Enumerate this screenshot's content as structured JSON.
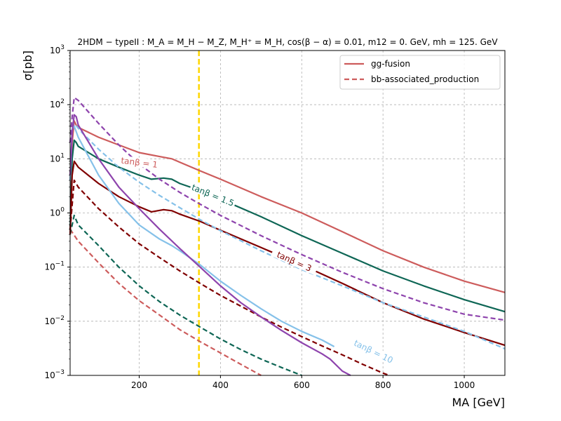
{
  "chart_data": {
    "type": "line",
    "title": "2HDM − typeII : M_A = M_H − M_Z, M_H⁺ = M_H, cos(β − α) = 0.01, m12 = 0. GeV, mh = 125. GeV",
    "xlabel": "MA [GeV]",
    "ylabel": "σ[pb]",
    "xlim": [
      30,
      1100
    ],
    "ylim": [
      0.001,
      1000
    ],
    "yscale": "log",
    "grid": true,
    "legend_position": "top-right",
    "xticks": [
      200,
      400,
      600,
      800,
      1000
    ],
    "yticks": [
      {
        "value": 0.001,
        "base": "10",
        "exp": "−3"
      },
      {
        "value": 0.01,
        "base": "10",
        "exp": "−2"
      },
      {
        "value": 0.1,
        "base": "10",
        "exp": "−1"
      },
      {
        "value": 1,
        "base": "10",
        "exp": "0"
      },
      {
        "value": 10,
        "base": "10",
        "exp": "1"
      },
      {
        "value": 100,
        "base": "10",
        "exp": "2"
      },
      {
        "value": 1000,
        "base": "10",
        "exp": "3"
      }
    ],
    "legend": [
      {
        "label": "gg-fusion",
        "style": "solid",
        "color": "#cd5c5c"
      },
      {
        "label": "bb-associated_production",
        "style": "dashed",
        "color": "#cd5c5c"
      }
    ],
    "vline": {
      "x": 347,
      "color": "#ffd700"
    },
    "series": [
      {
        "tanb": "1",
        "process": "gg-fusion",
        "color": "#cd5c5c",
        "style": "solid",
        "points": [
          [
            30,
            0.4
          ],
          [
            35,
            20
          ],
          [
            40,
            50
          ],
          [
            45,
            42
          ],
          [
            50,
            38
          ],
          [
            100,
            25
          ],
          [
            150,
            18
          ],
          [
            200,
            13
          ],
          [
            250,
            11
          ],
          [
            280,
            10
          ],
          [
            350,
            6
          ],
          [
            400,
            4.2
          ],
          [
            500,
            2
          ],
          [
            600,
            1
          ],
          [
            700,
            0.45
          ],
          [
            800,
            0.2
          ],
          [
            900,
            0.1
          ],
          [
            1000,
            0.055
          ],
          [
            1100,
            0.034
          ]
        ]
      },
      {
        "tanb": "1",
        "process": "bb-associated_production",
        "color": "#cd5c5c",
        "style": "dashed",
        "points": [
          [
            30,
            0.5
          ],
          [
            50,
            0.3
          ],
          [
            100,
            0.12
          ],
          [
            150,
            0.05
          ],
          [
            200,
            0.024
          ],
          [
            250,
            0.013
          ],
          [
            300,
            0.007
          ],
          [
            350,
            0.0042
          ],
          [
            400,
            0.0026
          ],
          [
            450,
            0.0016
          ],
          [
            500,
            0.001
          ]
        ]
      },
      {
        "tanb": "1.5",
        "process": "gg-fusion",
        "color": "#0e6655",
        "style": "solid",
        "points": [
          [
            30,
            0.5
          ],
          [
            35,
            10
          ],
          [
            40,
            22
          ],
          [
            45,
            20
          ],
          [
            50,
            17
          ],
          [
            100,
            10
          ],
          [
            150,
            7
          ],
          [
            200,
            5
          ],
          [
            230,
            4.2
          ],
          [
            260,
            4.4
          ],
          [
            280,
            4.2
          ],
          [
            300,
            3.5
          ],
          [
            350,
            2.6
          ],
          [
            400,
            1.8
          ],
          [
            500,
            0.85
          ],
          [
            600,
            0.38
          ],
          [
            700,
            0.18
          ],
          [
            800,
            0.085
          ],
          [
            900,
            0.045
          ],
          [
            1000,
            0.025
          ],
          [
            1100,
            0.015
          ]
        ]
      },
      {
        "tanb": "1.5",
        "process": "bb-associated_production",
        "color": "#0e6655",
        "style": "dashed",
        "points": [
          [
            30,
            0.4
          ],
          [
            40,
            0.9
          ],
          [
            50,
            0.6
          ],
          [
            100,
            0.25
          ],
          [
            150,
            0.1
          ],
          [
            200,
            0.045
          ],
          [
            250,
            0.023
          ],
          [
            300,
            0.013
          ],
          [
            350,
            0.0078
          ],
          [
            400,
            0.0047
          ],
          [
            450,
            0.003
          ],
          [
            500,
            0.002
          ],
          [
            550,
            0.0014
          ],
          [
            600,
            0.001
          ]
        ]
      },
      {
        "tanb": "3",
        "process": "gg-fusion",
        "color": "#800000",
        "style": "solid",
        "points": [
          [
            30,
            0.4
          ],
          [
            35,
            5
          ],
          [
            40,
            9
          ],
          [
            50,
            7
          ],
          [
            100,
            3.5
          ],
          [
            150,
            2
          ],
          [
            200,
            1.3
          ],
          [
            230,
            1.05
          ],
          [
            260,
            1.15
          ],
          [
            280,
            1.1
          ],
          [
            300,
            0.95
          ],
          [
            350,
            0.7
          ],
          [
            400,
            0.48
          ],
          [
            500,
            0.23
          ],
          [
            600,
            0.11
          ],
          [
            700,
            0.05
          ],
          [
            800,
            0.022
          ],
          [
            900,
            0.011
          ],
          [
            1000,
            0.0062
          ],
          [
            1100,
            0.0036
          ]
        ]
      },
      {
        "tanb": "3",
        "process": "bb-associated_production",
        "color": "#800000",
        "style": "dashed",
        "points": [
          [
            30,
            0.5
          ],
          [
            40,
            4
          ],
          [
            50,
            3
          ],
          [
            100,
            1.2
          ],
          [
            150,
            0.55
          ],
          [
            200,
            0.27
          ],
          [
            250,
            0.15
          ],
          [
            300,
            0.085
          ],
          [
            350,
            0.05
          ],
          [
            400,
            0.03
          ],
          [
            450,
            0.019
          ],
          [
            500,
            0.012
          ],
          [
            550,
            0.0078
          ],
          [
            600,
            0.0052
          ],
          [
            650,
            0.0035
          ],
          [
            700,
            0.0024
          ],
          [
            750,
            0.0016
          ],
          [
            800,
            0.0011
          ],
          [
            815,
            0.001
          ]
        ]
      },
      {
        "tanb": "10",
        "process": "gg-fusion",
        "color": "#85c1e9",
        "style": "solid",
        "points": [
          [
            30,
            4
          ],
          [
            35,
            35
          ],
          [
            40,
            40
          ],
          [
            50,
            25
          ],
          [
            100,
            5
          ],
          [
            150,
            1.5
          ],
          [
            200,
            0.6
          ],
          [
            250,
            0.33
          ],
          [
            280,
            0.25
          ],
          [
            300,
            0.2
          ],
          [
            350,
            0.11
          ],
          [
            400,
            0.055
          ],
          [
            450,
            0.03
          ],
          [
            500,
            0.017
          ],
          [
            550,
            0.01
          ],
          [
            600,
            0.0065
          ],
          [
            650,
            0.0045
          ],
          [
            680,
            0.0034
          ]
        ]
      },
      {
        "tanb": "10",
        "process": "bb-associated_production",
        "color": "#85c1e9",
        "style": "dashed",
        "points": [
          [
            30,
            40
          ],
          [
            40,
            45
          ],
          [
            60,
            30
          ],
          [
            100,
            15
          ],
          [
            150,
            7
          ],
          [
            200,
            3.7
          ],
          [
            250,
            2.1
          ],
          [
            300,
            1.25
          ],
          [
            350,
            0.75
          ],
          [
            400,
            0.47
          ],
          [
            500,
            0.2
          ],
          [
            600,
            0.09
          ],
          [
            700,
            0.045
          ],
          [
            800,
            0.022
          ],
          [
            900,
            0.012
          ],
          [
            1000,
            0.0065
          ],
          [
            1100,
            0.0031
          ]
        ]
      },
      {
        "tanb": "",
        "process": "gg-fusion",
        "color": "#8e44ad",
        "style": "solid",
        "points": [
          [
            30,
            5
          ],
          [
            35,
            30
          ],
          [
            40,
            65
          ],
          [
            45,
            60
          ],
          [
            50,
            42
          ],
          [
            100,
            10
          ],
          [
            150,
            3
          ],
          [
            200,
            1.2
          ],
          [
            250,
            0.5
          ],
          [
            300,
            0.22
          ],
          [
            350,
            0.1
          ],
          [
            400,
            0.045
          ],
          [
            450,
            0.022
          ],
          [
            500,
            0.012
          ],
          [
            550,
            0.0068
          ],
          [
            600,
            0.004
          ],
          [
            650,
            0.0025
          ],
          [
            670,
            0.002
          ],
          [
            700,
            0.0012
          ],
          [
            720,
            0.001
          ]
        ]
      },
      {
        "tanb": "",
        "process": "bb-associated_production",
        "color": "#8e44ad",
        "style": "dashed",
        "points": [
          [
            30,
            20
          ],
          [
            35,
            60
          ],
          [
            40,
            135
          ],
          [
            50,
            120
          ],
          [
            100,
            45
          ],
          [
            150,
            18
          ],
          [
            200,
            8
          ],
          [
            250,
            4.2
          ],
          [
            300,
            2.4
          ],
          [
            350,
            1.45
          ],
          [
            400,
            0.9
          ],
          [
            500,
            0.38
          ],
          [
            600,
            0.17
          ],
          [
            700,
            0.08
          ],
          [
            800,
            0.04
          ],
          [
            900,
            0.022
          ],
          [
            1000,
            0.0135
          ],
          [
            1100,
            0.0105
          ]
        ]
      }
    ],
    "curve_labels": [
      {
        "text": "tanβ = 1",
        "x": 200,
        "y": 8,
        "angle": 7,
        "color": "#cd5c5c"
      },
      {
        "text": "tanβ = 1.5",
        "x": 380,
        "y": 2.0,
        "angle": 22,
        "color": "#0e6655"
      },
      {
        "text": "tanβ = 3",
        "x": 580,
        "y": 0.12,
        "angle": 24,
        "color": "#800000"
      },
      {
        "text": "tanβ = 10",
        "x": 775,
        "y": 0.0026,
        "angle": 26,
        "color": "#85c1e9"
      }
    ]
  }
}
